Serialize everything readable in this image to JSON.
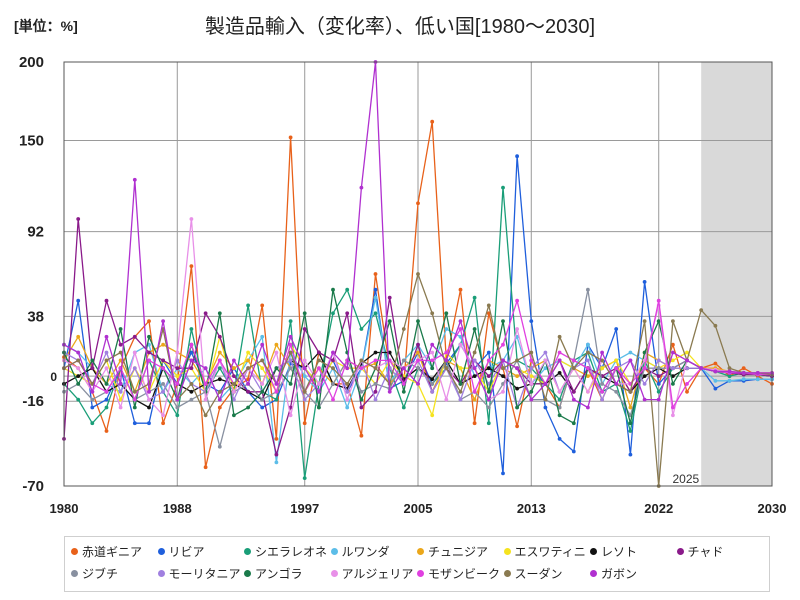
{
  "unit_label": "[単位：%]",
  "chart_data": {
    "type": "line",
    "title": "製造品輸入（変化率）、低い国[1980～2030]",
    "xlabel": "",
    "ylabel": "",
    "xlim": [
      1980,
      2030
    ],
    "ylim": [
      -70,
      200
    ],
    "x_ticks": [
      1980,
      1988,
      1997,
      2005,
      2013,
      2022,
      2030
    ],
    "y_ticks": [
      200,
      150,
      92,
      38,
      0,
      -16,
      -70
    ],
    "forecast_start": 2025,
    "forecast_label": "2025",
    "grid": true,
    "legend_position": "bottom",
    "x": [
      1980,
      1981,
      1982,
      1983,
      1984,
      1985,
      1986,
      1987,
      1988,
      1989,
      1990,
      1991,
      1992,
      1993,
      1994,
      1995,
      1996,
      1997,
      1998,
      1999,
      2000,
      2001,
      2002,
      2003,
      2004,
      2005,
      2006,
      2007,
      2008,
      2009,
      2010,
      2011,
      2012,
      2013,
      2014,
      2015,
      2016,
      2017,
      2018,
      2019,
      2020,
      2021,
      2022,
      2023,
      2024,
      2025,
      2026,
      2027,
      2028,
      2029,
      2030
    ],
    "series": [
      {
        "name": "赤道ギニア",
        "color": "#e8611a",
        "values": [
          12,
          5,
          -10,
          -35,
          5,
          25,
          35,
          -30,
          -5,
          70,
          -58,
          -20,
          -8,
          -2,
          45,
          -40,
          152,
          -30,
          15,
          -5,
          -5,
          -38,
          65,
          5,
          -5,
          110,
          162,
          10,
          55,
          -30,
          40,
          5,
          -32,
          10,
          -5,
          -20,
          10,
          5,
          -15,
          5,
          -10,
          5,
          -5,
          20,
          -10,
          5,
          8,
          0,
          5,
          0,
          -5
        ]
      },
      {
        "name": "リビア",
        "color": "#1f5fdc",
        "values": [
          5,
          48,
          -20,
          -15,
          5,
          -30,
          -30,
          10,
          -5,
          15,
          -5,
          -10,
          5,
          -10,
          -20,
          -15,
          8,
          5,
          -5,
          10,
          -10,
          5,
          55,
          -8,
          -3,
          15,
          -5,
          8,
          20,
          5,
          15,
          -62,
          140,
          35,
          -20,
          -40,
          -48,
          20,
          5,
          30,
          -50,
          60,
          -5,
          5,
          10,
          5,
          -8,
          -3,
          -3,
          -2,
          -2
        ]
      },
      {
        "name": "シエラレオネ",
        "color": "#1a9e78",
        "values": [
          -5,
          -15,
          -30,
          -20,
          5,
          -15,
          10,
          -10,
          -25,
          30,
          -10,
          5,
          -10,
          45,
          -10,
          -15,
          35,
          -65,
          -5,
          40,
          55,
          30,
          40,
          5,
          -20,
          5,
          -5,
          5,
          20,
          50,
          -30,
          120,
          10,
          5,
          -5,
          -15,
          10,
          15,
          -10,
          -5,
          -35,
          10,
          -10,
          5,
          5,
          5,
          3,
          0,
          2,
          1,
          0
        ]
      },
      {
        "name": "ルワンダ",
        "color": "#5cbde8",
        "values": [
          20,
          15,
          5,
          -5,
          -10,
          15,
          20,
          -10,
          5,
          -5,
          5,
          -15,
          -5,
          10,
          25,
          -55,
          15,
          0,
          -10,
          5,
          -20,
          5,
          50,
          -5,
          10,
          20,
          5,
          30,
          25,
          0,
          5,
          10,
          25,
          -5,
          5,
          10,
          5,
          20,
          -5,
          10,
          15,
          10,
          5,
          5,
          5,
          5,
          -3,
          -3,
          -2,
          -2,
          -2
        ]
      },
      {
        "name": "チュニジア",
        "color": "#eba71a",
        "values": [
          10,
          25,
          5,
          -5,
          10,
          -10,
          15,
          20,
          15,
          10,
          -5,
          15,
          5,
          10,
          -5,
          20,
          5,
          -10,
          5,
          -5,
          10,
          5,
          8,
          -5,
          5,
          15,
          -10,
          10,
          5,
          -15,
          10,
          5,
          0,
          5,
          10,
          -10,
          5,
          0,
          5,
          10,
          -20,
          15,
          10,
          5,
          5,
          5,
          5,
          3,
          2,
          2,
          2
        ]
      },
      {
        "name": "エスワティニ",
        "color": "#f5e31f",
        "values": [
          5,
          0,
          -5,
          10,
          -15,
          5,
          -10,
          10,
          0,
          5,
          -10,
          25,
          -10,
          15,
          5,
          -10,
          20,
          5,
          -5,
          10,
          5,
          5,
          -5,
          10,
          0,
          -5,
          -25,
          15,
          5,
          5,
          -10,
          10,
          5,
          0,
          -5,
          10,
          5,
          -10,
          5,
          10,
          -5,
          10,
          5,
          10,
          15,
          5,
          3,
          2,
          2,
          1,
          1
        ]
      },
      {
        "name": "レソト",
        "color": "#111111",
        "values": [
          -5,
          0,
          5,
          -10,
          -5,
          -15,
          -20,
          5,
          -5,
          -10,
          -5,
          -2,
          -5,
          -10,
          -15,
          5,
          10,
          5,
          15,
          -5,
          -8,
          8,
          15,
          15,
          -2,
          5,
          -2,
          10,
          -5,
          0,
          5,
          0,
          -8,
          -5,
          -5,
          2,
          -10,
          5,
          0,
          -5,
          -10,
          0,
          5,
          0,
          5,
          5,
          3,
          2,
          1,
          1,
          0
        ]
      },
      {
        "name": "チャド",
        "color": "#8a1a8a",
        "values": [
          -40,
          100,
          5,
          48,
          20,
          25,
          15,
          10,
          5,
          5,
          40,
          25,
          0,
          -10,
          -10,
          -50,
          -20,
          30,
          15,
          10,
          40,
          -20,
          -10,
          50,
          -5,
          20,
          -10,
          5,
          -5,
          10,
          0,
          10,
          5,
          -5,
          -5,
          10,
          -10,
          5,
          0,
          5,
          -10,
          5,
          0,
          5,
          10,
          5,
          3,
          2,
          1,
          1,
          0
        ]
      },
      {
        "name": "ジブチ",
        "color": "#8890a0",
        "values": [
          -10,
          -5,
          -15,
          -10,
          5,
          -15,
          -10,
          -5,
          -20,
          -15,
          -10,
          -45,
          -10,
          -5,
          -15,
          -10,
          5,
          -10,
          -20,
          -5,
          10,
          -10,
          -5,
          -8,
          10,
          5,
          -5,
          10,
          -15,
          -10,
          -20,
          -5,
          10,
          -15,
          -15,
          -20,
          10,
          55,
          -5,
          -10,
          -25,
          5,
          5,
          5,
          10,
          5,
          3,
          2,
          2,
          1,
          1
        ]
      },
      {
        "name": "モーリタニア",
        "color": "#a080e0",
        "values": [
          15,
          10,
          -5,
          15,
          -10,
          5,
          -15,
          -10,
          10,
          -5,
          -10,
          10,
          -15,
          5,
          -10,
          5,
          10,
          -15,
          -5,
          15,
          -10,
          10,
          -15,
          5,
          -5,
          10,
          -10,
          5,
          -15,
          10,
          -5,
          10,
          -20,
          5,
          15,
          -10,
          5,
          10,
          -15,
          5,
          10,
          -5,
          10,
          5,
          5,
          5,
          3,
          3,
          2,
          2,
          1
        ]
      },
      {
        "name": "アンゴラ",
        "color": "#1a7a4a",
        "values": [
          15,
          -5,
          10,
          -5,
          30,
          -20,
          25,
          5,
          -15,
          20,
          -10,
          40,
          -25,
          -20,
          -10,
          5,
          -5,
          40,
          -20,
          55,
          15,
          -15,
          5,
          35,
          -10,
          35,
          5,
          40,
          -5,
          30,
          -10,
          35,
          -20,
          -10,
          10,
          -25,
          -30,
          5,
          -10,
          5,
          -30,
          15,
          35,
          -5,
          10,
          5,
          3,
          2,
          2,
          1,
          1
        ]
      },
      {
        "name": "アルジェリア",
        "color": "#e890e8",
        "values": [
          10,
          5,
          -10,
          5,
          -20,
          15,
          -15,
          -25,
          15,
          100,
          -15,
          10,
          -10,
          5,
          -5,
          15,
          -25,
          10,
          -5,
          15,
          -15,
          10,
          5,
          10,
          5,
          10,
          15,
          -15,
          20,
          5,
          -15,
          -10,
          30,
          -5,
          10,
          -10,
          5,
          -10,
          10,
          -5,
          -5,
          10,
          45,
          -25,
          10,
          5,
          4,
          3,
          2,
          2,
          1
        ]
      },
      {
        "name": "モザンビーク",
        "color": "#e040e0",
        "values": [
          5,
          10,
          -5,
          -10,
          5,
          -15,
          10,
          5,
          -5,
          20,
          -5,
          10,
          -5,
          5,
          10,
          -10,
          20,
          -10,
          5,
          -15,
          10,
          5,
          10,
          10,
          -5,
          10,
          10,
          15,
          30,
          -10,
          10,
          20,
          48,
          10,
          -5,
          15,
          10,
          5,
          -10,
          5,
          -5,
          5,
          48,
          -20,
          -5,
          5,
          3,
          2,
          2,
          1,
          1
        ]
      },
      {
        "name": "スーダン",
        "color": "#8a7a50",
        "values": [
          5,
          10,
          -5,
          10,
          15,
          -10,
          -5,
          30,
          -15,
          -5,
          -25,
          -10,
          -5,
          5,
          10,
          -5,
          15,
          -10,
          10,
          5,
          -5,
          10,
          5,
          -5,
          30,
          65,
          40,
          5,
          -10,
          15,
          45,
          5,
          10,
          15,
          -15,
          25,
          5,
          15,
          10,
          -5,
          -10,
          35,
          -70,
          35,
          10,
          42,
          32,
          5,
          2,
          2,
          1
        ]
      },
      {
        "name": "ガボン",
        "color": "#b030d0",
        "values": [
          20,
          15,
          -10,
          25,
          -5,
          125,
          -10,
          35,
          -15,
          10,
          5,
          -15,
          10,
          -5,
          20,
          -5,
          25,
          5,
          -10,
          15,
          5,
          120,
          200,
          -10,
          5,
          -5,
          20,
          10,
          35,
          5,
          -15,
          10,
          5,
          -15,
          -5,
          10,
          -15,
          -20,
          15,
          -5,
          10,
          -15,
          -15,
          15,
          10,
          5,
          3,
          3,
          2,
          2,
          2
        ]
      }
    ]
  }
}
